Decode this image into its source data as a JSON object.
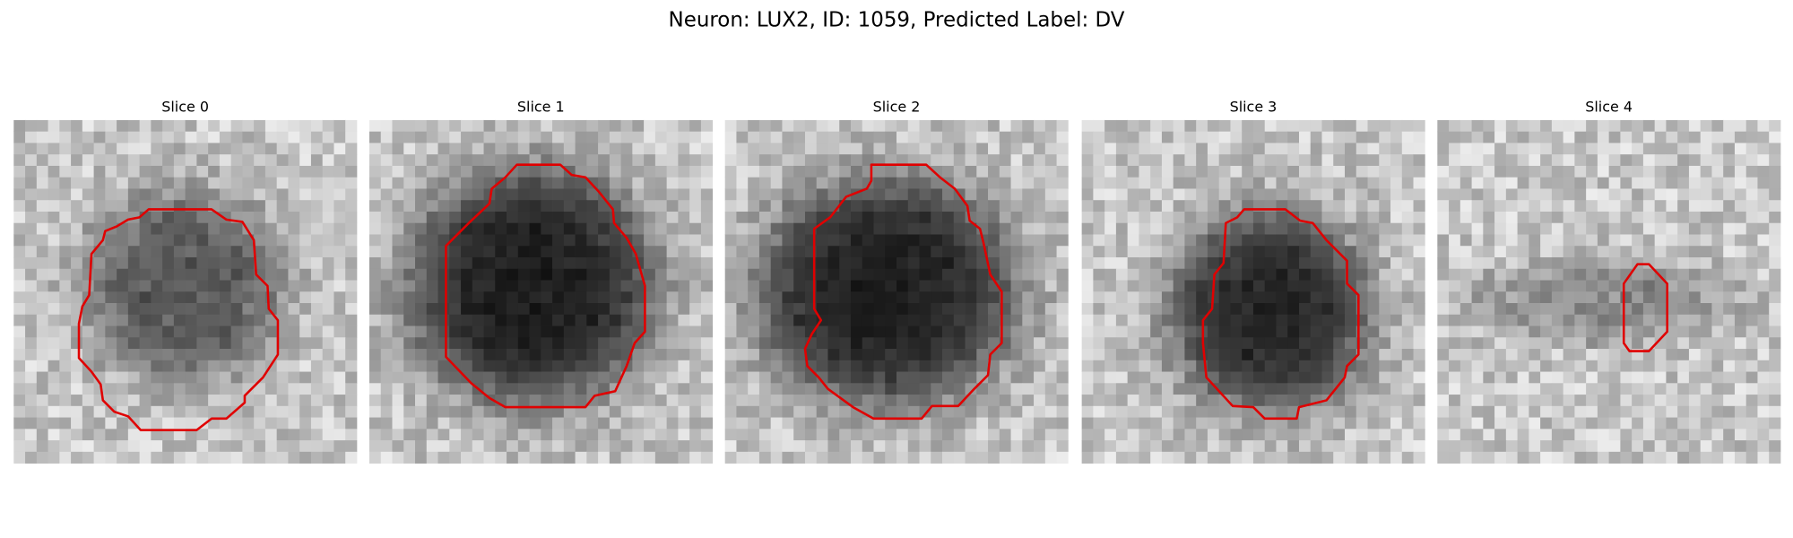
{
  "title": "Neuron: LUX2, ID: 1059, Predicted Label: DV",
  "panels": [
    {
      "title": "Slice 0"
    },
    {
      "title": "Slice 1"
    },
    {
      "title": "Slice 2"
    },
    {
      "title": "Slice 3"
    },
    {
      "title": "Slice 4"
    }
  ]
}
